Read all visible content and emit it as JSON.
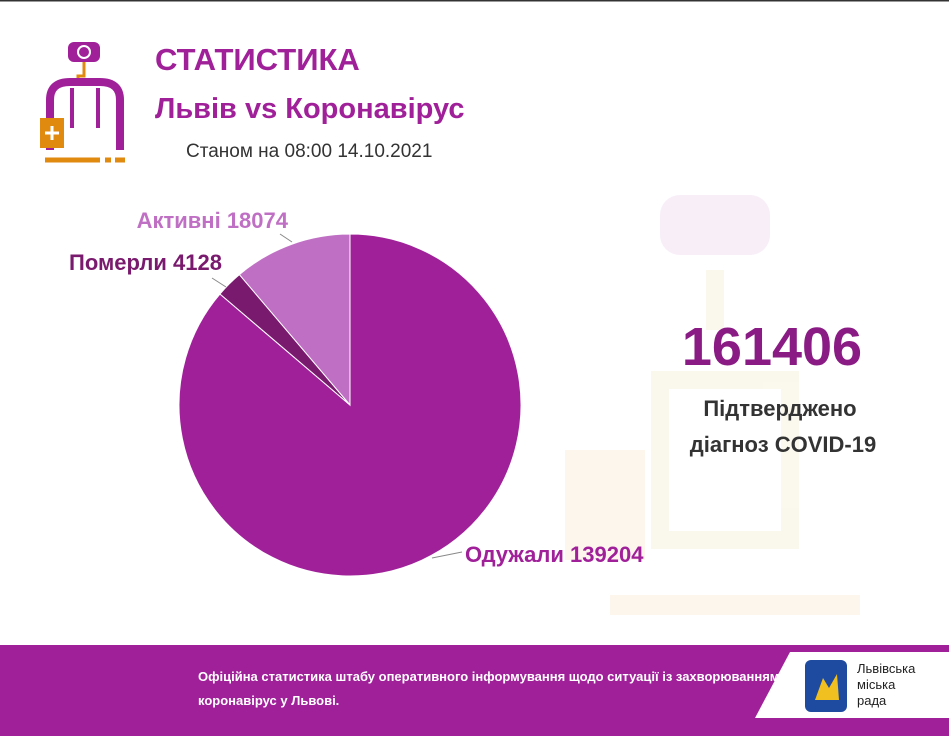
{
  "chart_data": {
    "type": "pie",
    "title": "СТАТИСТИКА",
    "subtitle": "Львів vs Коронавірус",
    "date": "Станом на 08:00 14.10.2021",
    "categories": [
      "Одужали",
      "Померли",
      "Активні"
    ],
    "values": [
      139204,
      4128,
      18074
    ],
    "colors": [
      "#a0209a",
      "#7a1a6e",
      "#c070c4"
    ],
    "total": 161406,
    "total_caption": [
      "Підтверджено",
      "діагноз COVID-19"
    ]
  },
  "footer": {
    "text": [
      "Офіційна статистика штабу оперативного інформування щодо ситуації із захворюванням на",
      "коронавірус у Львові."
    ],
    "logo": [
      "Львівська",
      "міська",
      "рада"
    ]
  }
}
